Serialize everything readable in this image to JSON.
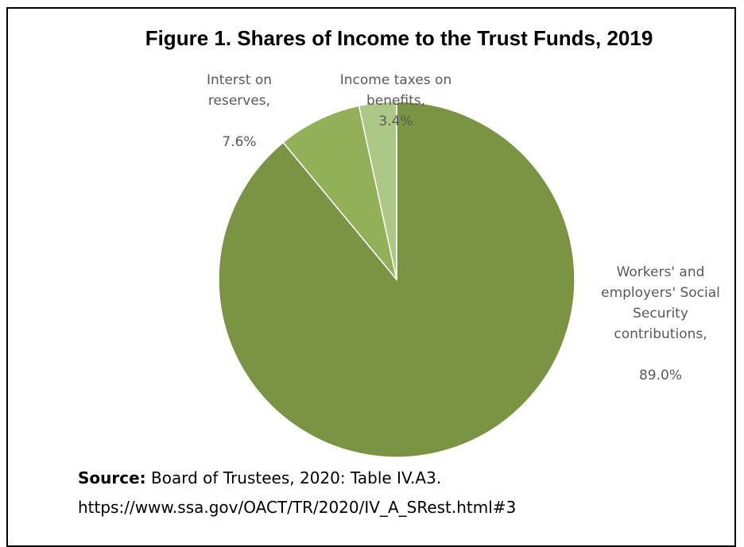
{
  "chart_data": {
    "type": "pie",
    "title": "Figure 1. Shares of Income to the Trust Funds, 2019",
    "slices": [
      {
        "label": "Workers' and employers' Social Security contributions,",
        "value_label": "89.0%",
        "value": 89.0,
        "color": "#7a9444"
      },
      {
        "label": "Interst on reserves,",
        "value_label": "7.6%",
        "value": 7.6,
        "color": "#92b058"
      },
      {
        "label": "Income taxes on benefits,",
        "value_label": "3.4%",
        "value": 3.4,
        "color": "#adc787"
      }
    ],
    "start_angle": "12 o'clock, clockwise"
  },
  "source": {
    "prefix": "Source:",
    "text": "Board of Trustees, 2020: Table IV.A3.",
    "url": "https://www.ssa.gov/OACT/TR/2020/IV_A_SRest.html#3"
  }
}
